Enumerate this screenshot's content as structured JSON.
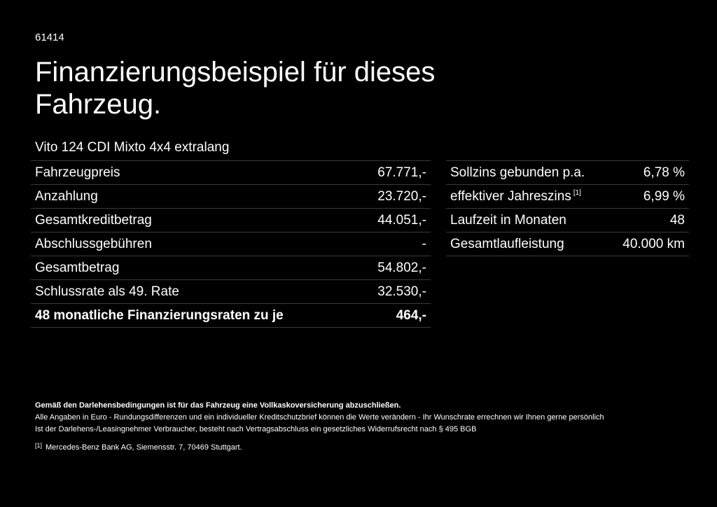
{
  "header": {
    "id": "61414",
    "title": "Finanzierungsbeispiel für dieses Fahrzeug.",
    "model": "Vito 124 CDI Mixto 4x4 extralang"
  },
  "left_table": {
    "rows": [
      [
        "Fahrzeugpreis",
        "67.771,-"
      ],
      [
        "Anzahlung",
        "23.720,-"
      ],
      [
        "Gesamtkreditbetrag",
        "44.051,-"
      ],
      [
        "Abschlussgebühren",
        "-"
      ],
      [
        "Gesamtbetrag",
        "54.802,-"
      ],
      [
        "Schlussrate als 49. Rate",
        "32.530,-"
      ],
      [
        "48 monatliche Finanzierungsraten zu je",
        "464,-"
      ]
    ]
  },
  "right_table": {
    "rows": [
      {
        "label": "Sollzins gebunden p.a.",
        "value": "6,78 %"
      },
      {
        "label": "effektiver Jahreszins",
        "note": "[1]",
        "value": "6,99 %"
      },
      {
        "label": "Laufzeit in Monaten",
        "value": "48"
      },
      {
        "label": "Gesamtlaufleistung",
        "value": "40.000 km"
      }
    ]
  },
  "footnotes": {
    "insurance": "Gemäß den Darlehensbedingungen ist für das Fahrzeug eine Vollkaskoversicherung abzuschließen.",
    "lines": [
      "Alle Angaben in Euro - Rundungsdifferenzen und ein individueller Kreditschutzbrief können die Werte verändern - Ihr Wunschrate errechnen wir Ihnen gerne persönlich",
      "Ist der Darlehens-/Leasingnehmer Verbraucher, besteht nach Vertragsabschluss ein gesetzliches Widerrufsrecht nach § 495 BGB"
    ],
    "ref": {
      "marker": "[1]",
      "text": "Mercedes-Benz Bank AG, Siemensstr. 7, 70469 Stuttgart."
    }
  }
}
